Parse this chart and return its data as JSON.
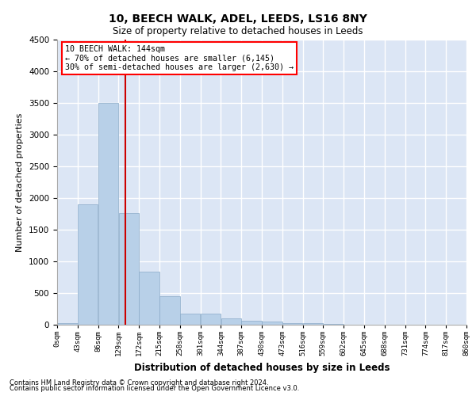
{
  "title": "10, BEECH WALK, ADEL, LEEDS, LS16 8NY",
  "subtitle": "Size of property relative to detached houses in Leeds",
  "xlabel": "Distribution of detached houses by size in Leeds",
  "ylabel": "Number of detached properties",
  "bar_color": "#b8d0e8",
  "bar_edgecolor": "#8aaac8",
  "background_color": "#dce6f5",
  "grid_color": "#ffffff",
  "bins": [
    0,
    43,
    86,
    129,
    172,
    215,
    258,
    301,
    344,
    387,
    430,
    473,
    516,
    559,
    602,
    645,
    688,
    731,
    774,
    817,
    860
  ],
  "bin_labels": [
    "0sqm",
    "43sqm",
    "86sqm",
    "129sqm",
    "172sqm",
    "215sqm",
    "258sqm",
    "301sqm",
    "344sqm",
    "387sqm",
    "430sqm",
    "473sqm",
    "516sqm",
    "559sqm",
    "602sqm",
    "645sqm",
    "688sqm",
    "731sqm",
    "774sqm",
    "817sqm",
    "860sqm"
  ],
  "counts": [
    30,
    1900,
    3500,
    1760,
    840,
    450,
    170,
    170,
    100,
    60,
    50,
    30,
    20,
    10,
    5,
    5,
    3,
    2,
    2,
    2
  ],
  "property_size": 144,
  "annotation_line1": "10 BEECH WALK: 144sqm",
  "annotation_line2": "← 70% of detached houses are smaller (6,145)",
  "annotation_line3": "30% of semi-detached houses are larger (2,630) →",
  "vline_color": "#cc0000",
  "ylim": [
    0,
    4500
  ],
  "yticks": [
    0,
    500,
    1000,
    1500,
    2000,
    2500,
    3000,
    3500,
    4000,
    4500
  ],
  "footer1": "Contains HM Land Registry data © Crown copyright and database right 2024.",
  "footer2": "Contains public sector information licensed under the Open Government Licence v3.0."
}
